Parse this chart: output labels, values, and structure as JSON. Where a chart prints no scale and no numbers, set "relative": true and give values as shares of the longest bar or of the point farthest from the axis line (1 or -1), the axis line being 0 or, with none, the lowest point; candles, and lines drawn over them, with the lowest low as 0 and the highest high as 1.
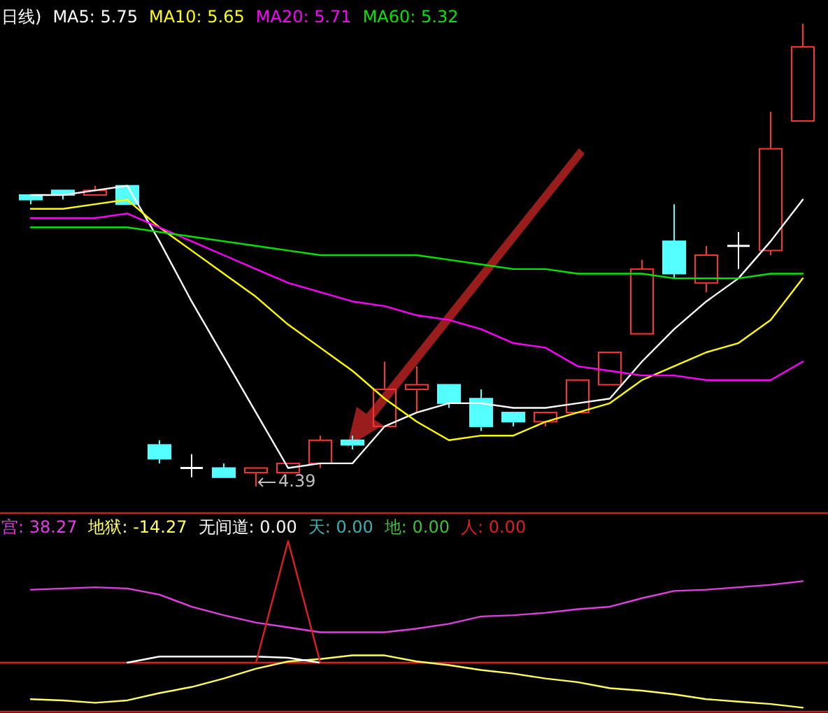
{
  "chart_data": [
    {
      "type": "candlestick",
      "title": "日线)",
      "relative": true,
      "legend": "top left",
      "categories": [
        null,
        null,
        null,
        null,
        null,
        null,
        null,
        null,
        null,
        null,
        null,
        null,
        null,
        null,
        null,
        null,
        null,
        null,
        null,
        null,
        null,
        null,
        null,
        null,
        null
      ],
      "ohlc": [
        [
          0.63,
          0.63,
          0.61,
          0.62
        ],
        [
          0.64,
          0.64,
          0.62,
          0.63
        ],
        [
          0.63,
          0.65,
          0.63,
          0.64
        ],
        [
          0.65,
          0.65,
          0.61,
          0.61
        ],
        [
          0.09,
          0.1,
          0.05,
          0.06
        ],
        [
          0.04,
          0.07,
          0.02,
          0.04
        ],
        [
          0.04,
          0.05,
          0.02,
          0.02
        ],
        [
          0.03,
          0.04,
          0,
          0.04
        ],
        [
          0.03,
          0.05,
          0.03,
          0.05
        ],
        [
          0.05,
          0.11,
          0.04,
          0.1
        ],
        [
          0.1,
          0.11,
          0.08,
          0.09
        ],
        [
          0.13,
          0.27,
          0.13,
          0.21
        ],
        [
          0.21,
          0.26,
          0.16,
          0.22
        ],
        [
          0.22,
          0.22,
          0.17,
          0.18
        ],
        [
          0.19,
          0.21,
          0.12,
          0.13
        ],
        [
          0.16,
          0.16,
          0.13,
          0.14
        ],
        [
          0.14,
          0.16,
          0.13,
          0.16
        ],
        [
          0.16,
          0.23,
          0.16,
          0.23
        ],
        [
          0.22,
          0.29,
          0.22,
          0.29
        ],
        [
          0.33,
          0.49,
          0.33,
          0.47
        ],
        [
          0.53,
          0.61,
          0.45,
          0.46
        ],
        [
          0.44,
          0.52,
          0.42,
          0.5
        ],
        [
          0.52,
          0.55,
          0.47,
          0.52
        ],
        [
          0.51,
          0.81,
          0.5,
          0.73
        ],
        [
          0.79,
          1,
          0.79,
          0.95
        ]
      ],
      "colors": [
        "#54ffff",
        "#54ffff",
        "#ff3232",
        "#54ffff",
        "#54ffff",
        "#ffffff",
        "#54ffff",
        "#ff3232",
        "#ff3232",
        "#ff3232",
        "#54ffff",
        "#ff3232",
        "#ff3232",
        "#54ffff",
        "#54ffff",
        "#54ffff",
        "#ff3232",
        "#ff3232",
        "#ff3232",
        "#ff3232",
        "#54ffff",
        "#ff3232",
        "#ffffff",
        "#ff3232",
        "#ff3232"
      ],
      "series": [
        {
          "name": "MA5: 5.75",
          "type": "line",
          "color": "#ffffff",
          "values": [
            0.63,
            0.63,
            0.64,
            0.65,
            0.53,
            0.4,
            0.28,
            0.16,
            0.04,
            0.05,
            0.05,
            0.13,
            0.16,
            0.18,
            0.18,
            0.17,
            0.17,
            0.18,
            0.19,
            0.27,
            0.34,
            0.4,
            0.45,
            0.53,
            0.62
          ]
        },
        {
          "name": "MA10: 5.65",
          "type": "line",
          "color": "#ffff00",
          "values": [
            0.6,
            0.6,
            0.61,
            0.62,
            0.56,
            0.51,
            0.46,
            0.41,
            0.35,
            0.3,
            0.25,
            0.19,
            0.14,
            0.1,
            0.11,
            0.11,
            0.14,
            0.16,
            0.18,
            0.23,
            0.26,
            0.29,
            0.31,
            0.36,
            0.45
          ]
        },
        {
          "name": "MA20: 5.71",
          "type": "line",
          "color": "#ff00ff",
          "values": [
            0.58,
            0.58,
            0.58,
            0.59,
            0.56,
            0.53,
            0.5,
            0.47,
            0.44,
            0.42,
            0.4,
            0.39,
            0.37,
            0.36,
            0.34,
            0.31,
            0.3,
            0.26,
            0.25,
            0.24,
            0.24,
            0.23,
            0.23,
            0.23,
            0.27
          ]
        },
        {
          "name": "MA60: 5.32",
          "type": "line",
          "color": "#00e600",
          "values": [
            0.56,
            0.56,
            0.56,
            0.56,
            0.55,
            0.54,
            0.53,
            0.52,
            0.51,
            0.5,
            0.5,
            0.5,
            0.5,
            0.49,
            0.48,
            0.47,
            0.47,
            0.46,
            0.46,
            0.46,
            0.45,
            0.45,
            0.45,
            0.46,
            0.46
          ]
        }
      ],
      "annotations": [
        "4.39"
      ]
    },
    {
      "type": "line",
      "relative": true,
      "legend": "top left",
      "categories": [
        null,
        null,
        null,
        null,
        null,
        null,
        null,
        null,
        null,
        null,
        null,
        null,
        null,
        null,
        null,
        null,
        null,
        null,
        null,
        null,
        null,
        null,
        null,
        null,
        null
      ],
      "series": [
        {
          "name": "宫: 38.27",
          "color": "#e040e0",
          "values": [
            0.6,
            0.61,
            0.62,
            0.61,
            0.56,
            0.46,
            0.39,
            0.33,
            0.29,
            0.25,
            0.25,
            0.25,
            0.28,
            0.32,
            0.38,
            0.39,
            0.41,
            0.44,
            0.46,
            0.53,
            0.59,
            0.6,
            0.62,
            0.64,
            0.67
          ]
        },
        {
          "name": "地狱: -14.27",
          "color": "#ffff60",
          "values": [
            -0.3,
            -0.31,
            -0.33,
            -0.31,
            -0.25,
            -0.2,
            -0.13,
            -0.05,
            0.01,
            0.03,
            0.06,
            0.06,
            0.01,
            -0.02,
            -0.06,
            -0.09,
            -0.13,
            -0.16,
            -0.21,
            -0.23,
            -0.26,
            -0.3,
            -0.32,
            -0.34,
            -0.37
          ]
        },
        {
          "name": "无间道: 0.00",
          "color": "#ffffff",
          "values": [
            null,
            null,
            null,
            0,
            0.05,
            0.05,
            0.05,
            0.05,
            0.04,
            0,
            null,
            null,
            null,
            null,
            null,
            null,
            null,
            null,
            null,
            null,
            null,
            null,
            null,
            null,
            null
          ]
        },
        {
          "name": "天: 0.00",
          "color": "#40b0b0",
          "values": [
            null,
            null,
            null,
            null,
            null,
            null,
            null,
            null,
            null,
            null,
            null,
            null,
            null,
            null,
            null,
            null,
            null,
            null,
            null,
            null,
            null,
            null,
            null,
            null,
            null
          ]
        },
        {
          "name": "地: 0.00",
          "color": "#40c040",
          "values": [
            null,
            null,
            null,
            null,
            null,
            null,
            null,
            null,
            null,
            null,
            null,
            null,
            null,
            null,
            null,
            null,
            null,
            null,
            null,
            null,
            null,
            null,
            null,
            null,
            null
          ]
        },
        {
          "name": "人: 0.00",
          "color": "#e02020",
          "values": [
            null,
            null,
            null,
            null,
            null,
            null,
            null,
            0,
            1,
            0,
            null,
            null,
            null,
            null,
            null,
            null,
            null,
            null,
            null,
            null,
            null,
            null,
            null,
            null,
            null
          ]
        }
      ],
      "ref_lines": [
        {
          "axis": "y",
          "value": 0,
          "color": "#e02020"
        }
      ]
    }
  ]
}
